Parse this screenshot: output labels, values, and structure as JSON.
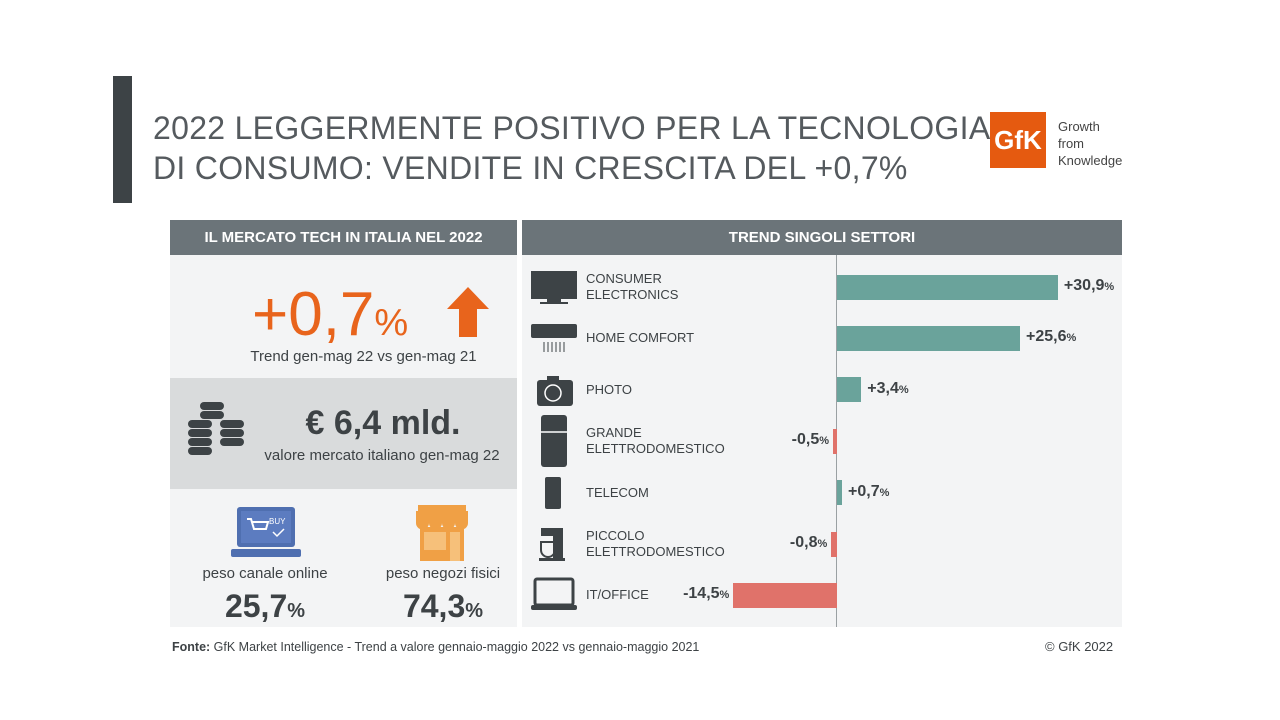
{
  "title": {
    "line1": "2022 LEGGERMENTE POSITIVO PER LA TECNOLOGIA",
    "line2": "DI CONSUMO: VENDITE IN CRESCITA DEL +0,7%"
  },
  "logo": {
    "mark": "GfK",
    "line1": "Growth",
    "line2": "from",
    "line3": "Knowledge"
  },
  "left": {
    "header": "IL MERCATO TECH IN ITALIA NEL 2022",
    "trend_value": "+0,7",
    "trend_unit": "%",
    "trend_caption": "Trend gen-mag 22 vs gen-mag 21",
    "market_value": "€ 6,4 mld.",
    "market_caption": "valore mercato italiano gen-mag 22",
    "online_caption": "peso canale online",
    "online_value": "25,7",
    "stores_caption": "peso negozi fisici",
    "stores_value": "74,3",
    "unit": "%",
    "buy_label": "BUY"
  },
  "colors": {
    "positive": "#6aa39b",
    "negative": "#e0726a",
    "accent": "#e8641c",
    "header": "#6b7479"
  },
  "chart_data": {
    "type": "bar",
    "orientation": "horizontal",
    "title": "TREND SINGOLI SETTORI",
    "unit": "%",
    "categories": [
      "CONSUMER ELECTRONICS",
      "HOME COMFORT",
      "PHOTO",
      "GRANDE ELETTRODOMESTICO",
      "TELECOM",
      "PICCOLO ELETTRODOMESTICO",
      "IT/OFFICE"
    ],
    "label_lines": [
      [
        "CONSUMER",
        "ELECTRONICS"
      ],
      [
        "HOME COMFORT"
      ],
      [
        "PHOTO"
      ],
      [
        "GRANDE",
        "ELETTRODOMESTICO"
      ],
      [
        "TELECOM"
      ],
      [
        "PICCOLO",
        "ELETTRODOMESTICO"
      ],
      [
        "IT/OFFICE"
      ]
    ],
    "icons": [
      "tv-icon",
      "air-conditioner-icon",
      "camera-icon",
      "fridge-icon",
      "smartphone-icon",
      "mixer-icon",
      "laptop-icon"
    ],
    "values": [
      30.9,
      25.6,
      3.4,
      -0.5,
      0.7,
      -0.8,
      -14.5
    ],
    "value_labels": [
      "+30,9",
      "+25,6",
      "+3,4",
      "-0,5",
      "+0,7",
      "-0,8",
      "-14,5"
    ]
  },
  "footer": {
    "source_label": "Fonte:",
    "source_text": " GfK Market Intelligence  - Trend a valore gennaio-maggio 2022 vs gennaio-maggio 2021",
    "copyright": "© GfK 2022"
  }
}
